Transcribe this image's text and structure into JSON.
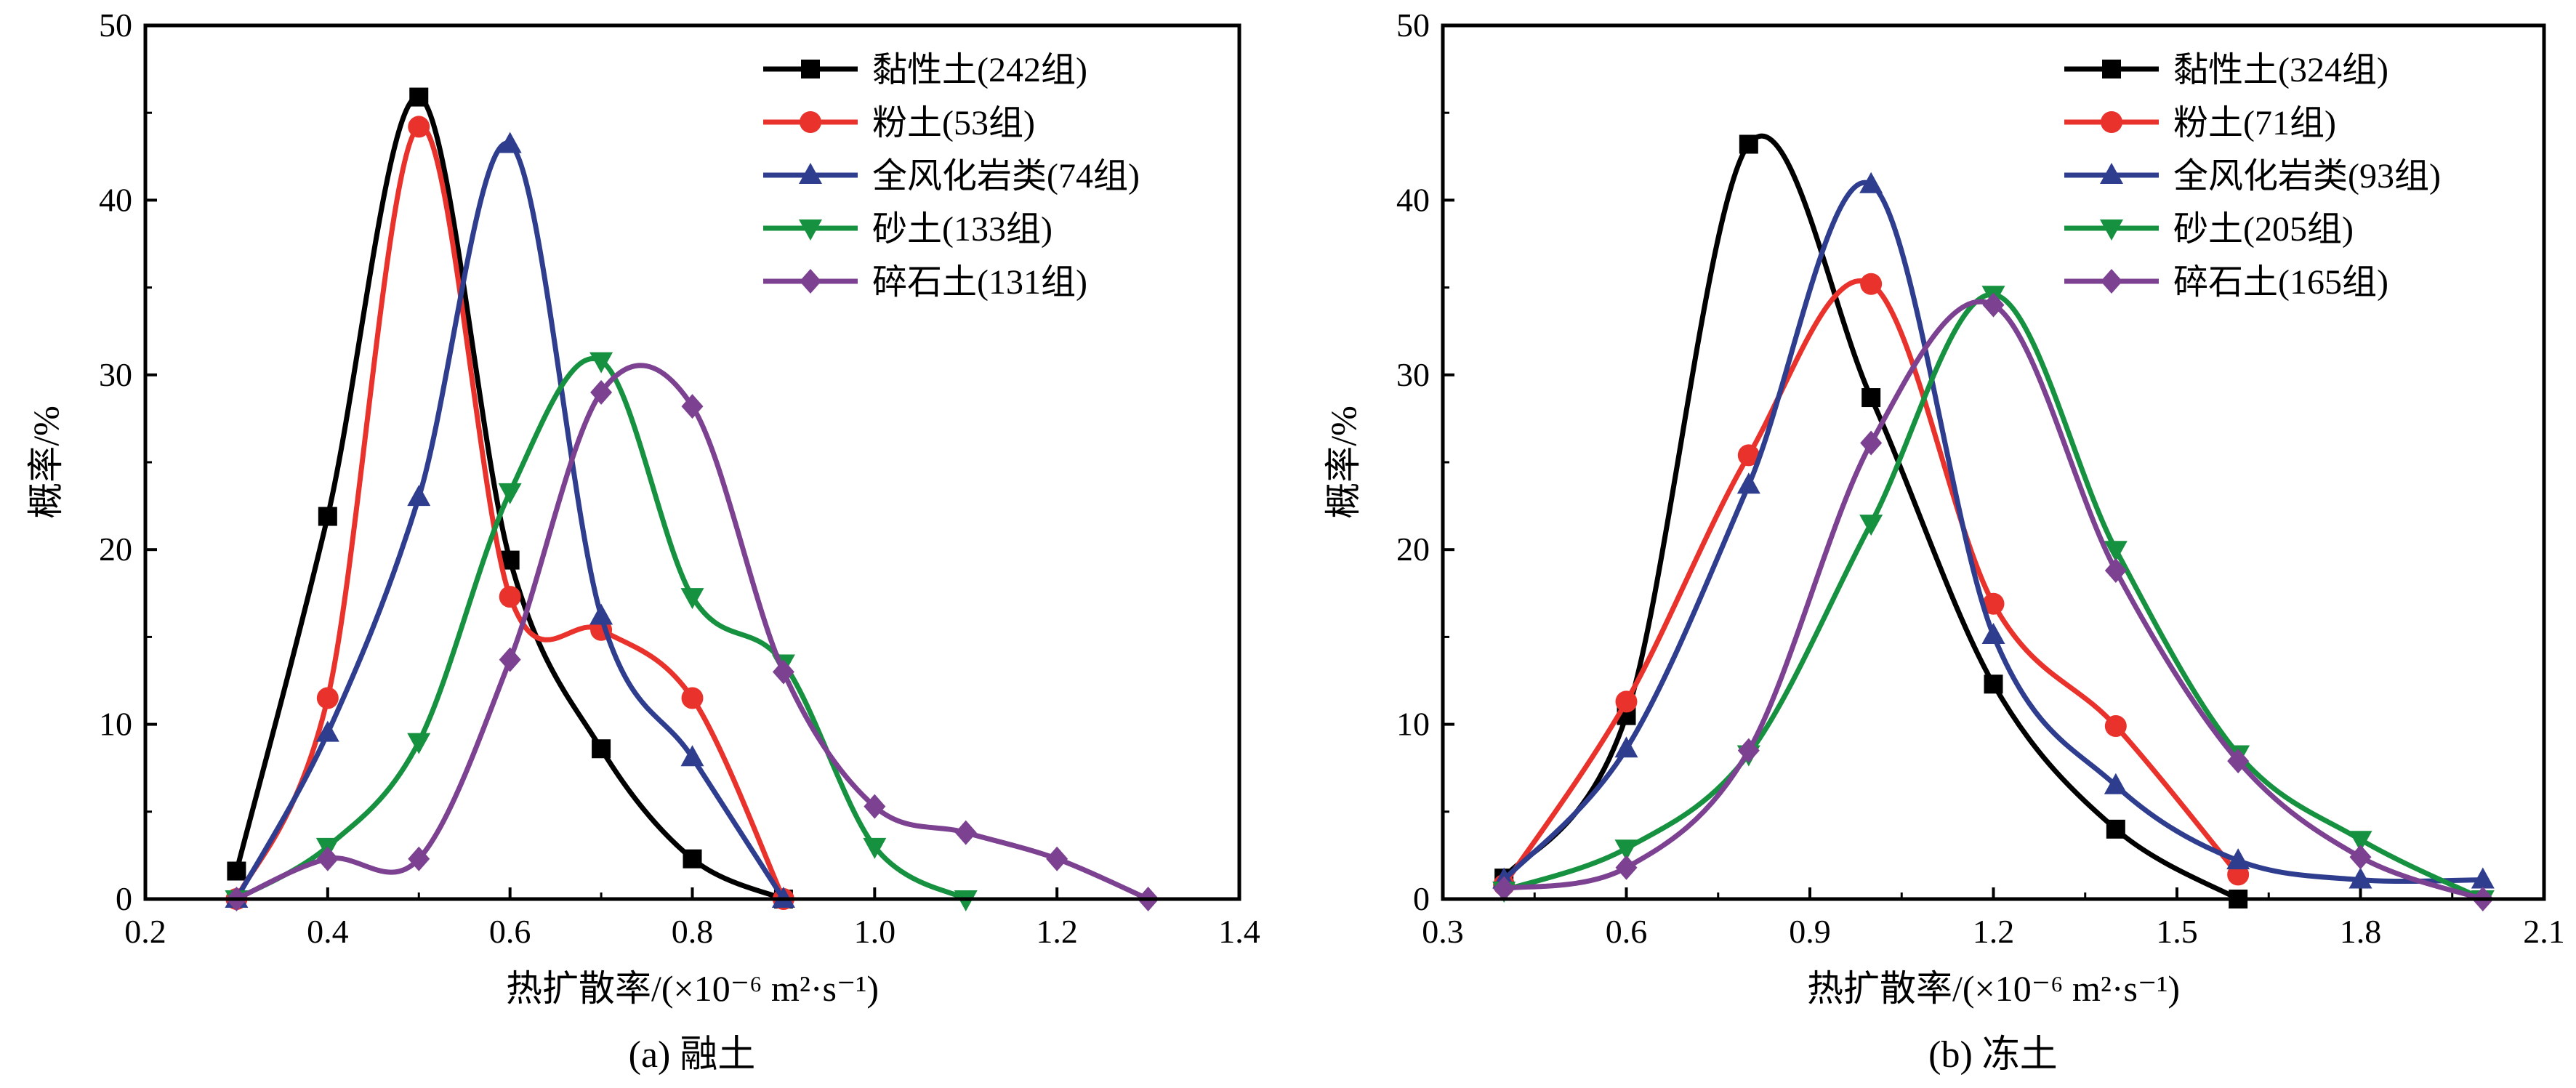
{
  "chart_data": [
    {
      "type": "line",
      "caption": "(a) 融土",
      "xlabel": "热扩散率/(×10⁻⁶ m²·s⁻¹)",
      "ylabel": "概率/%",
      "xlim": [
        0.2,
        1.4
      ],
      "ylim": [
        0,
        50
      ],
      "xticks": [
        "0.2",
        "0.4",
        "0.6",
        "0.8",
        "1.0",
        "1.2",
        "1.4"
      ],
      "yticks": [
        "0",
        "10",
        "20",
        "30",
        "40",
        "50"
      ],
      "legend_position": "top-right",
      "grid": false,
      "series": [
        {
          "name": "黏性土(242组)",
          "color": "#000000",
          "marker": "square",
          "x": [
            0.3,
            0.4,
            0.5,
            0.6,
            0.7,
            0.8,
            0.9
          ],
          "y": [
            1.6,
            21.9,
            45.9,
            19.4,
            8.6,
            2.3,
            0.0
          ]
        },
        {
          "name": "粉土(53组)",
          "color": "#e8322b",
          "marker": "circle",
          "x": [
            0.3,
            0.4,
            0.5,
            0.6,
            0.7,
            0.8,
            0.9
          ],
          "y": [
            0.0,
            11.5,
            44.2,
            17.3,
            15.4,
            11.5,
            0.0
          ]
        },
        {
          "name": "全风化岩类(74组)",
          "color": "#2f3d8f",
          "marker": "triangle-up",
          "x": [
            0.3,
            0.4,
            0.5,
            0.6,
            0.7,
            0.8,
            0.9
          ],
          "y": [
            0.0,
            9.5,
            23.0,
            43.2,
            16.2,
            8.1,
            0.0
          ]
        },
        {
          "name": "砂土(133组)",
          "color": "#16913f",
          "marker": "triangle-down",
          "x": [
            0.3,
            0.4,
            0.5,
            0.6,
            0.7,
            0.8,
            0.9,
            1.0,
            1.1
          ],
          "y": [
            0.0,
            3.0,
            9.0,
            23.3,
            30.8,
            17.3,
            13.5,
            3.0,
            0.0
          ]
        },
        {
          "name": "碎石土(131组)",
          "color": "#7c4190",
          "marker": "diamond",
          "x": [
            0.3,
            0.4,
            0.5,
            0.6,
            0.7,
            0.8,
            0.9,
            1.0,
            1.1,
            1.2,
            1.3
          ],
          "y": [
            0.0,
            2.3,
            2.3,
            13.7,
            29.0,
            28.2,
            13.0,
            5.3,
            3.8,
            2.3,
            0.0
          ]
        }
      ]
    },
    {
      "type": "line",
      "caption": "(b) 冻土",
      "xlabel": "热扩散率/(×10⁻⁶ m²·s⁻¹)",
      "ylabel": "概率/%",
      "xlim": [
        0.3,
        2.1
      ],
      "ylim": [
        0,
        50
      ],
      "xticks": [
        "0.3",
        "0.6",
        "0.9",
        "1.2",
        "1.5",
        "1.8",
        "2.1"
      ],
      "yticks": [
        "0",
        "10",
        "20",
        "30",
        "40",
        "50"
      ],
      "legend_position": "top-right",
      "grid": false,
      "series": [
        {
          "name": "黏性土(324组)",
          "color": "#000000",
          "marker": "square",
          "x": [
            0.4,
            0.6,
            0.8,
            1.0,
            1.2,
            1.4,
            1.6
          ],
          "y": [
            1.2,
            10.5,
            43.2,
            28.7,
            12.3,
            4.0,
            0.0
          ]
        },
        {
          "name": "粉土(71组)",
          "color": "#e8322b",
          "marker": "circle",
          "x": [
            0.4,
            0.6,
            0.8,
            1.0,
            1.2,
            1.4,
            1.6
          ],
          "y": [
            0.8,
            11.3,
            25.4,
            35.2,
            16.9,
            9.9,
            1.4
          ]
        },
        {
          "name": "全风化岩类(93组)",
          "color": "#2f3d8f",
          "marker": "triangle-up",
          "x": [
            0.4,
            0.6,
            0.8,
            1.0,
            1.2,
            1.4,
            1.6,
            1.8,
            2.0
          ],
          "y": [
            1.1,
            8.6,
            23.7,
            40.9,
            15.1,
            6.5,
            2.2,
            1.1,
            1.1
          ]
        },
        {
          "name": "砂土(205组)",
          "color": "#16913f",
          "marker": "triangle-down",
          "x": [
            0.4,
            0.6,
            0.8,
            1.0,
            1.2,
            1.4,
            1.6,
            1.8,
            2.0
          ],
          "y": [
            0.5,
            2.9,
            8.3,
            21.5,
            34.6,
            20.0,
            8.3,
            3.4,
            0.0
          ]
        },
        {
          "name": "碎石土(165组)",
          "color": "#7c4190",
          "marker": "diamond",
          "x": [
            0.4,
            0.6,
            0.8,
            1.0,
            1.2,
            1.4,
            1.6,
            1.8,
            2.0
          ],
          "y": [
            0.6,
            1.8,
            8.5,
            26.1,
            34.0,
            18.8,
            7.9,
            2.4,
            0.0
          ]
        }
      ]
    }
  ]
}
